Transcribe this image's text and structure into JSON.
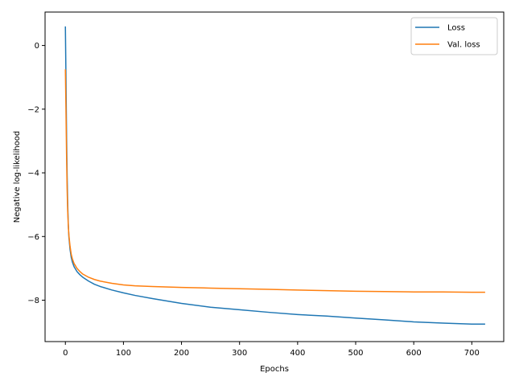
{
  "chart_data": {
    "type": "line",
    "title": "",
    "xlabel": "Epochs",
    "ylabel": "Negative log-likelihood",
    "xlim": [
      -35,
      755
    ],
    "ylim": [
      -9.3,
      1.05
    ],
    "xticks": [
      0,
      100,
      200,
      300,
      400,
      500,
      600,
      700
    ],
    "yticks": [
      0,
      -2,
      -4,
      -6,
      -8
    ],
    "grid": false,
    "legend_position": "top-right",
    "series": [
      {
        "name": "Loss",
        "color": "#1f77b4",
        "x": [
          0,
          1,
          2,
          3,
          4,
          5,
          6,
          8,
          10,
          12,
          15,
          20,
          25,
          30,
          40,
          50,
          60,
          80,
          100,
          120,
          150,
          200,
          250,
          300,
          350,
          400,
          450,
          500,
          550,
          600,
          650,
          700,
          723
        ],
        "y": [
          0.6,
          -1.0,
          -2.8,
          -4.1,
          -5.0,
          -5.6,
          -6.0,
          -6.4,
          -6.65,
          -6.8,
          -6.95,
          -7.1,
          -7.2,
          -7.28,
          -7.4,
          -7.5,
          -7.57,
          -7.68,
          -7.77,
          -7.85,
          -7.95,
          -8.1,
          -8.22,
          -8.3,
          -8.38,
          -8.45,
          -8.5,
          -8.56,
          -8.62,
          -8.68,
          -8.72,
          -8.75,
          -8.75
        ]
      },
      {
        "name": "Val. loss",
        "color": "#ff7f0e",
        "x": [
          0,
          1,
          2,
          3,
          4,
          5,
          6,
          8,
          10,
          12,
          15,
          20,
          25,
          30,
          40,
          50,
          60,
          80,
          100,
          120,
          150,
          200,
          250,
          300,
          350,
          400,
          450,
          500,
          550,
          600,
          650,
          700,
          723
        ],
        "y": [
          -0.75,
          -2.0,
          -3.4,
          -4.5,
          -5.2,
          -5.65,
          -5.95,
          -6.3,
          -6.55,
          -6.7,
          -6.85,
          -7.0,
          -7.1,
          -7.18,
          -7.28,
          -7.35,
          -7.4,
          -7.47,
          -7.52,
          -7.55,
          -7.57,
          -7.6,
          -7.62,
          -7.64,
          -7.66,
          -7.68,
          -7.7,
          -7.72,
          -7.73,
          -7.74,
          -7.74,
          -7.75,
          -7.75
        ]
      }
    ]
  }
}
